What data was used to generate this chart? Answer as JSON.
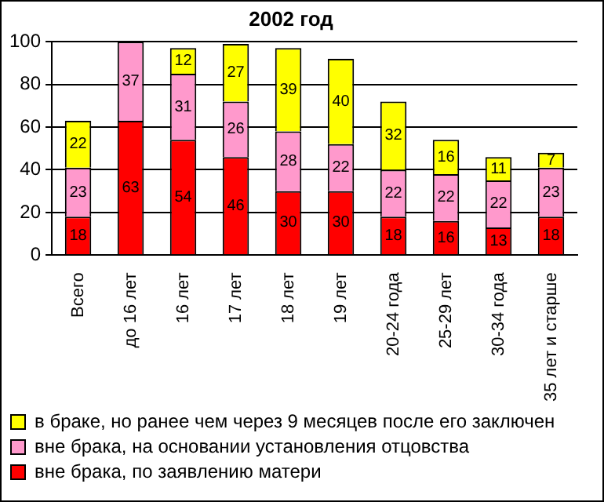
{
  "chart_data": {
    "type": "bar",
    "title": "2002 год",
    "stacked": true,
    "data_labels": true,
    "legend": "bottom",
    "grid": "y",
    "categories": [
      "Всего",
      "до 16 лет",
      "16 лет",
      "17 лет",
      "18 лет",
      "19 лет",
      "20-24 года",
      "25-29 лет",
      "30-34 года",
      "35 лет и старше"
    ],
    "ylim": [
      0,
      100
    ],
    "yticks": [
      0,
      20,
      40,
      60,
      80,
      100
    ],
    "series": [
      {
        "name": "вне брака, по заявлению матери",
        "color": "#ff0000",
        "values": [
          18,
          63,
          54,
          46,
          30,
          30,
          18,
          16,
          13,
          18
        ]
      },
      {
        "name": "вне брака, на основании установления отцовства",
        "color": "#ff99cc",
        "values": [
          23,
          37,
          31,
          26,
          28,
          22,
          22,
          22,
          22,
          23
        ]
      },
      {
        "name": "в браке, но ранее чем через 9 месяцев после его заключен",
        "color": "#ffff00",
        "values": [
          22,
          null,
          12,
          27,
          39,
          40,
          32,
          16,
          11,
          7
        ]
      }
    ]
  }
}
